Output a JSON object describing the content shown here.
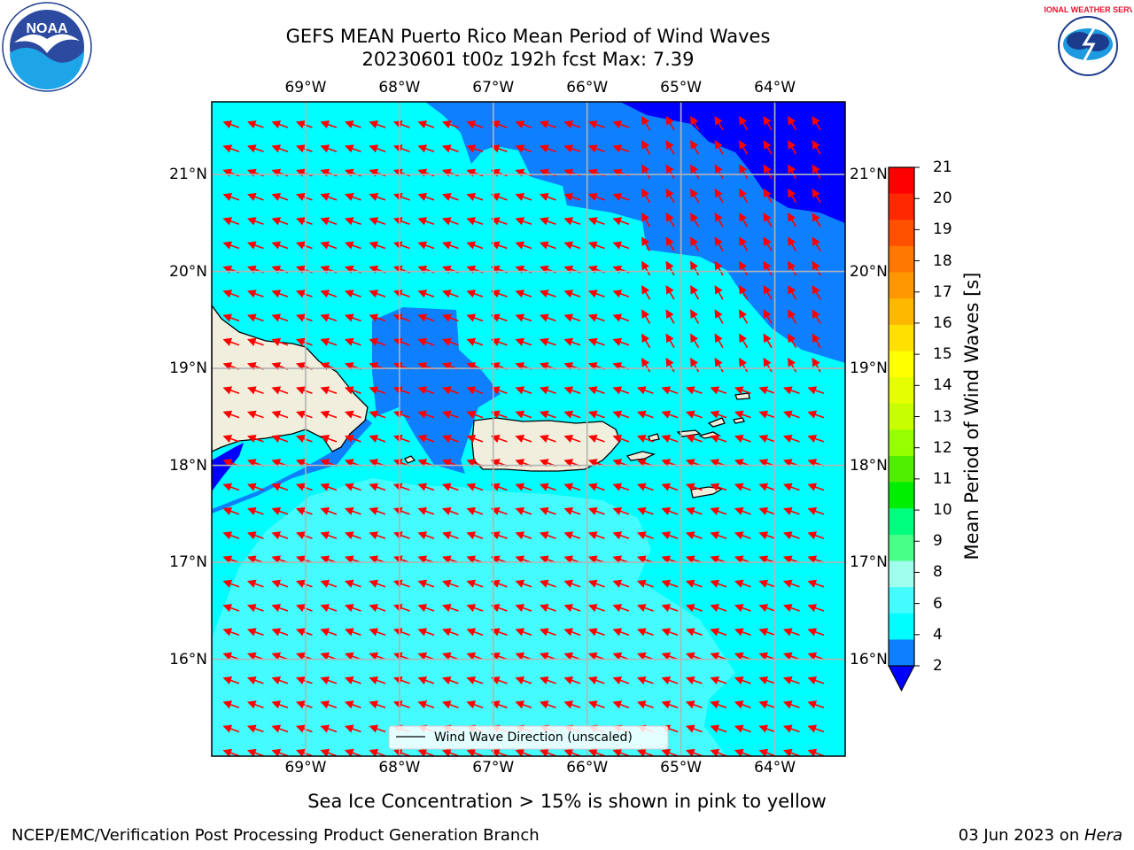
{
  "title": {
    "line1": "GEFS MEAN Puerto Rico Mean Period of Wind Waves",
    "line2": "20230601 t00z 192h fcst   Max: 7.39"
  },
  "map": {
    "lon_range": [
      -70.0,
      -63.25
    ],
    "lat_range": [
      15.0,
      21.75
    ],
    "lon_ticks": [
      {
        "value": -69,
        "label": "69°W"
      },
      {
        "value": -68,
        "label": "68°W"
      },
      {
        "value": -67,
        "label": "67°W"
      },
      {
        "value": -66,
        "label": "66°W"
      },
      {
        "value": -65,
        "label": "65°W"
      },
      {
        "value": -64,
        "label": "64°W"
      }
    ],
    "lat_ticks": [
      {
        "value": 21,
        "label": "21°N"
      },
      {
        "value": 20,
        "label": "20°N"
      },
      {
        "value": 19,
        "label": "19°N"
      },
      {
        "value": 18,
        "label": "18°N"
      },
      {
        "value": 17,
        "label": "17°N"
      },
      {
        "value": 16,
        "label": "16°N"
      }
    ],
    "colors": {
      "band_2_4": "#0e7fff",
      "band_4_6": "#00fdff",
      "band_6_8": "#44fbfe",
      "below_2": "#0000ff",
      "land": "#f0eedc",
      "arrow": "#ff0000",
      "grid": "#b3b3b3"
    },
    "legend_label": "Wind Wave Direction (unscaled)"
  },
  "colorbar": {
    "label": "Mean Period of Wind Waves [s]",
    "ticks": [
      "21",
      "20",
      "19",
      "18",
      "17",
      "16",
      "15",
      "14",
      "13",
      "12",
      "11",
      "10",
      "9",
      "8",
      "6",
      "4",
      "2"
    ],
    "colors": [
      "#ff0000",
      "#ff2800",
      "#ff5000",
      "#ff7800",
      "#ff9800",
      "#ffb800",
      "#ffe000",
      "#ffff00",
      "#e6ff00",
      "#c8ff00",
      "#96ff00",
      "#50ee00",
      "#00ee00",
      "#00ff7f",
      "#48ff87",
      "#9fffec",
      "#44fbfe",
      "#00fdff",
      "#0e7fff"
    ],
    "under_color": "#0000ff"
  },
  "subtitle": "Sea Ice Concentration > 15% is shown in pink to yellow",
  "footer": {
    "left": "NCEP/EMC/Verification Post Processing Product Generation Branch",
    "right_prefix": "03 Jun 2023 on ",
    "right_host": "Hera"
  },
  "logos": {
    "noaa_text": "NOAA",
    "nws_text": "NATIONAL WEATHER SERVICE"
  }
}
